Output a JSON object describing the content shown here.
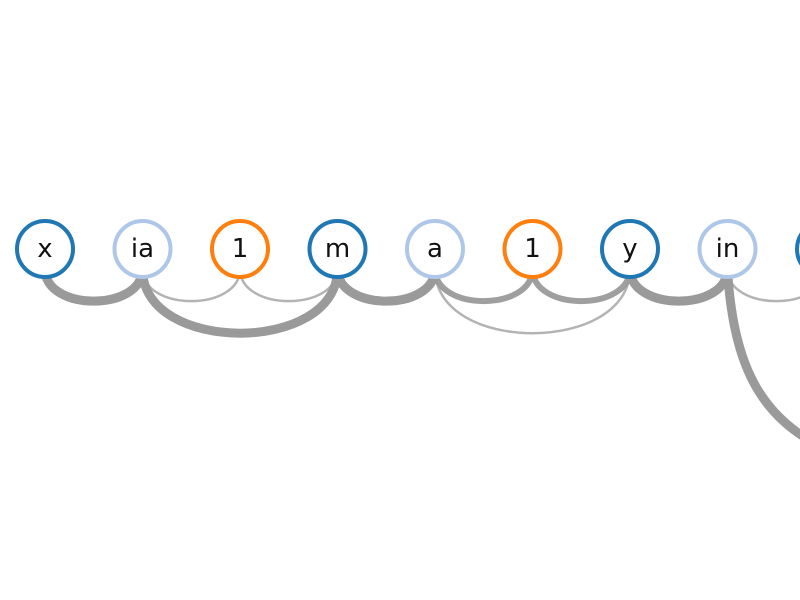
{
  "colors": {
    "dark_blue": "#1f77b4",
    "light_blue": "#aec7e8",
    "orange": "#ff7f0e",
    "link": "#9a9a9a"
  },
  "nodes": [
    {
      "id": "n0",
      "label": "x",
      "color": "dark_blue"
    },
    {
      "id": "n1",
      "label": "ia",
      "color": "light_blue"
    },
    {
      "id": "n2",
      "label": "1",
      "color": "orange"
    },
    {
      "id": "n3",
      "label": "m",
      "color": "dark_blue"
    },
    {
      "id": "n4",
      "label": "a",
      "color": "light_blue"
    },
    {
      "id": "n5",
      "label": "1",
      "color": "orange"
    },
    {
      "id": "n6",
      "label": "y",
      "color": "dark_blue"
    },
    {
      "id": "n7",
      "label": "in",
      "color": "light_blue"
    },
    {
      "id": "n8",
      "label": "",
      "color": "dark_blue"
    }
  ],
  "links": [
    {
      "source": 0,
      "target": 1,
      "weight": "heavy"
    },
    {
      "source": 1,
      "target": 2,
      "weight": "light"
    },
    {
      "source": 2,
      "target": 3,
      "weight": "light"
    },
    {
      "source": 1,
      "target": 3,
      "weight": "heavy"
    },
    {
      "source": 3,
      "target": 4,
      "weight": "heavy"
    },
    {
      "source": 4,
      "target": 5,
      "weight": "medium"
    },
    {
      "source": 4,
      "target": 6,
      "weight": "light"
    },
    {
      "source": 5,
      "target": 6,
      "weight": "medium"
    },
    {
      "source": 6,
      "target": 7,
      "weight": "heavy"
    },
    {
      "source": 7,
      "target": 8,
      "weight": "light"
    },
    {
      "source": 7,
      "target": "offscreen",
      "weight": "heavy"
    }
  ]
}
